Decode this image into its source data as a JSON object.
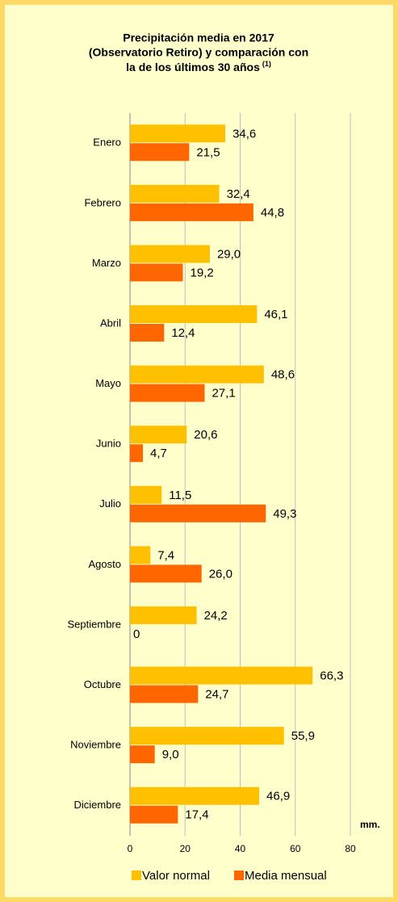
{
  "chart_data": {
    "type": "bar",
    "orientation": "horizontal",
    "title": [
      "Precipitación media en 2017",
      "(Observatorio Retiro) y comparación con",
      "la de los últimos 30 años"
    ],
    "title_note": "(1)",
    "x_label": "mm.",
    "categories": [
      "Enero",
      "Febrero",
      "Marzo",
      "Abril",
      "Mayo",
      "Junio",
      "Julio",
      "Agosto",
      "Septiembre",
      "Octubre",
      "Noviembre",
      "Diciembre"
    ],
    "series": [
      {
        "name": "Valor normal",
        "color": "#FFC000",
        "values": [
          34.6,
          32.4,
          29.0,
          46.1,
          48.6,
          20.6,
          11.5,
          7.4,
          24.2,
          66.3,
          55.9,
          46.9
        ],
        "value_labels": [
          "34,6",
          "32,4",
          "29,0",
          "46,1",
          "48,6",
          "20,6",
          "11,5",
          "7,4",
          "24,2",
          "66,3",
          "55,9",
          "46,9"
        ]
      },
      {
        "name": "Media mensual",
        "color": "#FF6600",
        "values": [
          21.5,
          44.8,
          19.2,
          12.4,
          27.1,
          4.7,
          49.3,
          26.0,
          0,
          24.7,
          9.0,
          17.4
        ],
        "value_labels": [
          "21,5",
          "44,8",
          "19,2",
          "12,4",
          "27,1",
          "4,7",
          "49,3",
          "26,0",
          "0",
          "24,7",
          "9,0",
          "17,4"
        ]
      }
    ],
    "xlim": [
      0,
      80
    ],
    "xticks": [
      0,
      20,
      40,
      60,
      80
    ],
    "grid": true,
    "legend": "bottom"
  }
}
